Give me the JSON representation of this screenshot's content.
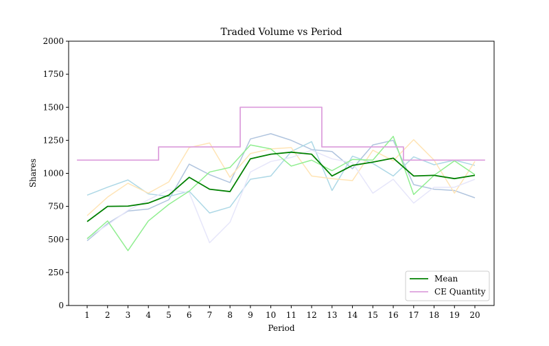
{
  "chart_data": {
    "type": "line",
    "title": "Traded Volume vs Period",
    "xlabel": "Period",
    "ylabel": "Shares",
    "ylim": [
      0,
      2000
    ],
    "yticks": [
      0,
      250,
      500,
      750,
      1000,
      1250,
      1500,
      1750,
      2000
    ],
    "x": [
      1,
      2,
      3,
      4,
      5,
      6,
      7,
      8,
      9,
      10,
      11,
      12,
      13,
      14,
      15,
      16,
      17,
      18,
      19,
      20
    ],
    "grid": false,
    "legend_position": "bottom-right",
    "legend": [
      "Mean",
      "CE Quantity"
    ],
    "series": [
      {
        "color": "#b0c4de",
        "values": [
          490,
          620,
          715,
          730,
          800,
          1070,
          990,
          930,
          1260,
          1300,
          1250,
          1180,
          1165,
          1035,
          1215,
          1250,
          915,
          880,
          870,
          815
        ]
      },
      {
        "color": "#add8e6",
        "values": [
          835,
          895,
          950,
          845,
          825,
          865,
          700,
          745,
          955,
          980,
          1165,
          1240,
          870,
          1130,
          1075,
          980,
          1125,
          1065,
          1100,
          1060
        ]
      },
      {
        "color": "#ffe4b5",
        "values": [
          680,
          820,
          925,
          850,
          935,
          1195,
          1230,
          970,
          1150,
          1185,
          1195,
          980,
          960,
          945,
          1175,
          1095,
          1255,
          1100,
          850,
          1090
        ]
      },
      {
        "color": "#e6e6fa",
        "values": [
          510,
          610,
          720,
          800,
          875,
          855,
          475,
          630,
          1010,
          1090,
          1120,
          1175,
          1110,
          1080,
          850,
          955,
          775,
          895,
          895,
          955
        ]
      },
      {
        "color": "#90ee90",
        "values": [
          505,
          640,
          415,
          640,
          765,
          865,
          1010,
          1045,
          1215,
          1185,
          1055,
          1100,
          1020,
          1105,
          1100,
          1280,
          840,
          985,
          1095,
          990
        ]
      },
      {
        "name": "Mean",
        "color": "#008000",
        "values": [
          635,
          750,
          752,
          775,
          835,
          970,
          880,
          862,
          1110,
          1145,
          1160,
          1145,
          980,
          1060,
          1085,
          1115,
          980,
          985,
          960,
          985
        ]
      },
      {
        "name": "CE Quantity",
        "color": "#dda0dd",
        "step": true,
        "values": [
          1100,
          1100,
          1100,
          1100,
          1200,
          1200,
          1200,
          1200,
          1500,
          1500,
          1500,
          1500,
          1200,
          1200,
          1200,
          1200,
          1100,
          1100,
          1100,
          1100
        ]
      }
    ]
  }
}
